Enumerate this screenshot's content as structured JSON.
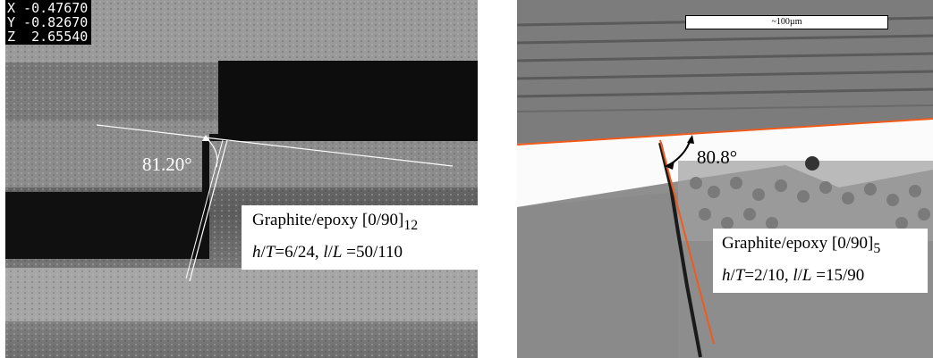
{
  "left_image": {
    "readout": {
      "x": "X -0.47670",
      "y": "Y -0.82670",
      "z": "Z  2.65540"
    },
    "angle_label": "81.20°",
    "caption": {
      "material": "Graphite/epoxy [0/90]",
      "material_sub": "12",
      "h": "h",
      "T": "T",
      "ratio1": "=6/24, ",
      "l": "l",
      "L": "L",
      "ratio2": " =50/110"
    }
  },
  "right_image": {
    "scale_label": "~100µm",
    "angle_label": "80.8°",
    "caption": {
      "material": "Graphite/epoxy [0/90]",
      "material_sub": "5",
      "h": "h",
      "T": "T",
      "ratio1": "=2/10, ",
      "l": "l",
      "L": "L",
      "ratio2": " =15/90"
    },
    "line_color": "#f05a1a"
  }
}
